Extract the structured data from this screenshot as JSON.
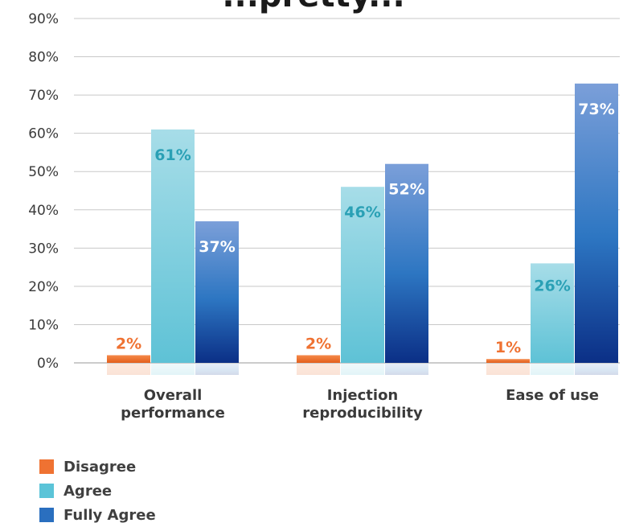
{
  "chart_data": {
    "type": "bar",
    "title": "...pretty...",
    "categories": [
      "Overall\nperformance",
      "Injection\nreproducibility",
      "Ease of use"
    ],
    "series": [
      {
        "name": "Disagree",
        "values": [
          2,
          2,
          1
        ],
        "color": "#ef7232",
        "label_color": "#ef7232"
      },
      {
        "name": "Agree",
        "values": [
          61,
          46,
          26
        ],
        "color": "#5bc4d8",
        "label_color": "#2aa0b5"
      },
      {
        "name": "Fully Agree",
        "values": [
          37,
          52,
          73
        ],
        "color": "#2a6fbf",
        "label_color": "#ffffff"
      }
    ],
    "y_ticks": [
      "0%",
      "10%",
      "20%",
      "30%",
      "40%",
      "50%",
      "60%",
      "70%",
      "80%",
      "90%"
    ],
    "ylim": [
      0,
      90
    ],
    "value_suffix": "%",
    "grid": true,
    "legend_position": "bottom-left"
  }
}
